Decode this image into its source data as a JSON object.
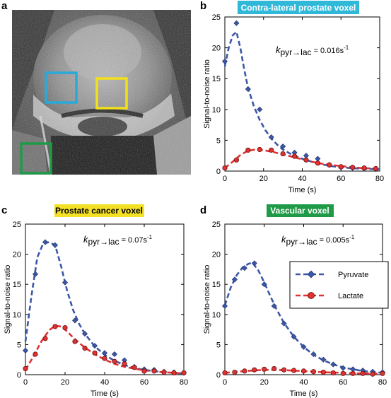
{
  "panel_labels": {
    "a": "a",
    "b": "b",
    "c": "c",
    "d": "d"
  },
  "mri_image": {
    "roi_boxes": [
      {
        "name": "contra-lateral",
        "color": "#29a9d8"
      },
      {
        "name": "prostate-cancer",
        "color": "#f2e01c"
      },
      {
        "name": "vascular",
        "color": "#1f9a46"
      }
    ]
  },
  "chart_data": [
    {
      "id": "b",
      "type": "scatter",
      "title": "Contra-lateral prostate voxel",
      "title_bg": "#30b8d9",
      "title_color": "#ffffff",
      "xlabel": "Time (s)",
      "ylabel": "Signal-to-noise ratio",
      "xlim": [
        0,
        80
      ],
      "ylim": [
        0,
        25
      ],
      "xticks": [
        0,
        20,
        40,
        60,
        80
      ],
      "yticks": [
        0,
        5,
        10,
        15,
        20,
        25
      ],
      "annotation": {
        "k": "k",
        "sub": "pyr→lac",
        "value": " = 0.016s",
        "sup": "-1"
      },
      "series": [
        {
          "key": "pyr",
          "color": "#3c57a6",
          "marker": "diamond",
          "points": [
            [
              0,
              17.8
            ],
            [
              6,
              24
            ],
            [
              12,
              13.3
            ],
            [
              18,
              10
            ],
            [
              24,
              5.5
            ],
            [
              30,
              4
            ],
            [
              36,
              3
            ],
            [
              42,
              2.5
            ],
            [
              48,
              2
            ],
            [
              54,
              1
            ],
            [
              60,
              0.6
            ],
            [
              66,
              0.5
            ],
            [
              72,
              0.4
            ],
            [
              78,
              0.3
            ]
          ],
          "fit": [
            [
              0,
              17
            ],
            [
              2,
              20
            ],
            [
              4,
              22
            ],
            [
              6,
              22.6
            ],
            [
              8,
              20
            ],
            [
              10,
              16.5
            ],
            [
              12,
              13.5
            ],
            [
              15,
              10.5
            ],
            [
              18,
              8.3
            ],
            [
              21,
              6.6
            ],
            [
              24,
              5.3
            ],
            [
              27,
              4.3
            ],
            [
              30,
              3.5
            ],
            [
              35,
              2.6
            ],
            [
              40,
              2
            ],
            [
              45,
              1.5
            ],
            [
              50,
              1.1
            ],
            [
              55,
              0.8
            ],
            [
              60,
              0.6
            ],
            [
              70,
              0.4
            ],
            [
              80,
              0.3
            ]
          ]
        },
        {
          "key": "lac",
          "color": "#e03232",
          "marker": "circle",
          "points": [
            [
              0,
              0.5
            ],
            [
              6,
              1.8
            ],
            [
              12,
              3.4
            ],
            [
              18,
              3.5
            ],
            [
              24,
              3.4
            ],
            [
              30,
              2.8
            ],
            [
              36,
              2.4
            ],
            [
              42,
              1.8
            ],
            [
              48,
              1.3
            ],
            [
              54,
              1
            ],
            [
              60,
              0.7
            ],
            [
              66,
              0.6
            ],
            [
              72,
              0.5
            ],
            [
              78,
              0.4
            ]
          ],
          "fit": [
            [
              0,
              0.5
            ],
            [
              4,
              1.5
            ],
            [
              8,
              2.6
            ],
            [
              12,
              3.3
            ],
            [
              16,
              3.5
            ],
            [
              20,
              3.4
            ],
            [
              25,
              3.1
            ],
            [
              30,
              2.7
            ],
            [
              35,
              2.3
            ],
            [
              40,
              1.9
            ],
            [
              45,
              1.5
            ],
            [
              50,
              1.2
            ],
            [
              55,
              1
            ],
            [
              60,
              0.8
            ],
            [
              70,
              0.5
            ],
            [
              80,
              0.35
            ]
          ]
        }
      ]
    },
    {
      "id": "c",
      "type": "scatter",
      "title": "Prostate cancer voxel",
      "title_bg": "#f4e125",
      "title_color": "#000000",
      "xlabel": "Time (s)",
      "ylabel": "Signal-to-noise ratio",
      "xlim": [
        0,
        80
      ],
      "ylim": [
        0,
        25
      ],
      "xticks": [
        0,
        20,
        40,
        60,
        80
      ],
      "yticks": [
        0,
        5,
        10,
        15,
        20,
        25
      ],
      "annotation": {
        "k": "k",
        "sub": "pyr→lac",
        "value": " = 0.07s",
        "sup": "-1"
      },
      "series": [
        {
          "key": "pyr",
          "color": "#3c57a6",
          "marker": "diamond",
          "points": [
            [
              0,
              4
            ],
            [
              5,
              16.7
            ],
            [
              10,
              22
            ],
            [
              15,
              21.5
            ],
            [
              20,
              15.3
            ],
            [
              25,
              9
            ],
            [
              30,
              6.8
            ],
            [
              35,
              4.8
            ],
            [
              40,
              3.6
            ],
            [
              45,
              3.4
            ],
            [
              50,
              2.4
            ],
            [
              55,
              1.3
            ],
            [
              60,
              0.9
            ],
            [
              65,
              0.8
            ],
            [
              70,
              0.5
            ],
            [
              75,
              0.4
            ],
            [
              80,
              0.3
            ]
          ],
          "fit": [
            [
              0,
              5.5
            ],
            [
              3,
              13
            ],
            [
              6,
              19.5
            ],
            [
              9,
              21.8
            ],
            [
              12,
              22
            ],
            [
              15,
              21.5
            ],
            [
              18,
              18
            ],
            [
              21,
              14
            ],
            [
              24,
              10.8
            ],
            [
              27,
              8.5
            ],
            [
              30,
              6.8
            ],
            [
              35,
              4.7
            ],
            [
              40,
              3.3
            ],
            [
              45,
              2.3
            ],
            [
              50,
              1.6
            ],
            [
              55,
              1.1
            ],
            [
              60,
              0.8
            ],
            [
              70,
              0.4
            ],
            [
              80,
              0.2
            ]
          ]
        },
        {
          "key": "lac",
          "color": "#e03232",
          "marker": "circle",
          "points": [
            [
              0,
              1
            ],
            [
              5,
              3.4
            ],
            [
              10,
              6
            ],
            [
              15,
              8
            ],
            [
              20,
              7.8
            ],
            [
              25,
              5.5
            ],
            [
              30,
              4.4
            ],
            [
              35,
              3.6
            ],
            [
              40,
              2.7
            ],
            [
              45,
              2.2
            ],
            [
              50,
              1.8
            ],
            [
              55,
              1.2
            ],
            [
              60,
              0.6
            ],
            [
              65,
              0.6
            ],
            [
              70,
              0.4
            ],
            [
              75,
              0.3
            ],
            [
              80,
              0.3
            ]
          ],
          "fit": [
            [
              0,
              0.8
            ],
            [
              4,
              3
            ],
            [
              8,
              5.5
            ],
            [
              12,
              7.4
            ],
            [
              15,
              8.1
            ],
            [
              18,
              8
            ],
            [
              21,
              7.2
            ],
            [
              24,
              6.2
            ],
            [
              27,
              5.3
            ],
            [
              30,
              4.5
            ],
            [
              35,
              3.4
            ],
            [
              40,
              2.5
            ],
            [
              45,
              1.8
            ],
            [
              50,
              1.3
            ],
            [
              55,
              1
            ],
            [
              60,
              0.7
            ],
            [
              70,
              0.4
            ],
            [
              80,
              0.2
            ]
          ]
        }
      ]
    },
    {
      "id": "d",
      "type": "scatter",
      "title": "Vascular voxel",
      "title_bg": "#1f9a46",
      "title_color": "#ffffff",
      "xlabel": "Time (s)",
      "ylabel": "Signal-to-noise ratio",
      "xlim": [
        0,
        80
      ],
      "ylim": [
        0,
        25
      ],
      "xticks": [
        0,
        20,
        40,
        60,
        80
      ],
      "yticks": [
        0,
        5,
        10,
        15,
        20,
        25
      ],
      "annotation": {
        "k": "k",
        "sub": "pyr→lac",
        "value": " = 0.005s",
        "sup": "-1"
      },
      "legend": {
        "position": "right",
        "entries": [
          "Pyruvate",
          "Lactate"
        ]
      },
      "series": [
        {
          "key": "pyr",
          "color": "#3c57a6",
          "marker": "diamond",
          "points": [
            [
              0,
              11.4
            ],
            [
              5,
              15.8
            ],
            [
              10,
              17.7
            ],
            [
              15,
              18.5
            ],
            [
              20,
              15
            ],
            [
              25,
              11.4
            ],
            [
              30,
              8.5
            ],
            [
              35,
              6.3
            ],
            [
              40,
              4.6
            ],
            [
              45,
              3.4
            ],
            [
              50,
              2.5
            ],
            [
              55,
              1.7
            ],
            [
              60,
              1.1
            ],
            [
              65,
              0.9
            ],
            [
              70,
              0.7
            ],
            [
              75,
              0.5
            ],
            [
              80,
              0.4
            ]
          ],
          "fit": [
            [
              0,
              11.5
            ],
            [
              3,
              14.5
            ],
            [
              6,
              16.5
            ],
            [
              9,
              17.8
            ],
            [
              12,
              18.4
            ],
            [
              14,
              18.6
            ],
            [
              17,
              17.3
            ],
            [
              20,
              15.3
            ],
            [
              23,
              13.1
            ],
            [
              26,
              11
            ],
            [
              30,
              8.6
            ],
            [
              35,
              6.3
            ],
            [
              40,
              4.6
            ],
            [
              45,
              3.3
            ],
            [
              50,
              2.4
            ],
            [
              55,
              1.7
            ],
            [
              60,
              1.2
            ],
            [
              70,
              0.6
            ],
            [
              80,
              0.3
            ]
          ]
        },
        {
          "key": "lac",
          "color": "#e03232",
          "marker": "circle",
          "points": [
            [
              0,
              0.3
            ],
            [
              5,
              0.4
            ],
            [
              10,
              0.6
            ],
            [
              15,
              0.8
            ],
            [
              20,
              0.9
            ],
            [
              25,
              1
            ],
            [
              30,
              0.8
            ],
            [
              35,
              0.7
            ],
            [
              40,
              0.6
            ],
            [
              45,
              0.5
            ],
            [
              50,
              0.4
            ],
            [
              55,
              0.3
            ],
            [
              60,
              0.2
            ],
            [
              65,
              0.2
            ],
            [
              70,
              0.2
            ],
            [
              75,
              0.1
            ],
            [
              80,
              0.2
            ]
          ],
          "fit": [
            [
              0,
              0.3
            ],
            [
              10,
              0.6
            ],
            [
              20,
              0.8
            ],
            [
              25,
              0.8
            ],
            [
              30,
              0.75
            ],
            [
              40,
              0.6
            ],
            [
              50,
              0.4
            ],
            [
              60,
              0.3
            ],
            [
              70,
              0.2
            ],
            [
              80,
              0.15
            ]
          ]
        }
      ]
    }
  ]
}
